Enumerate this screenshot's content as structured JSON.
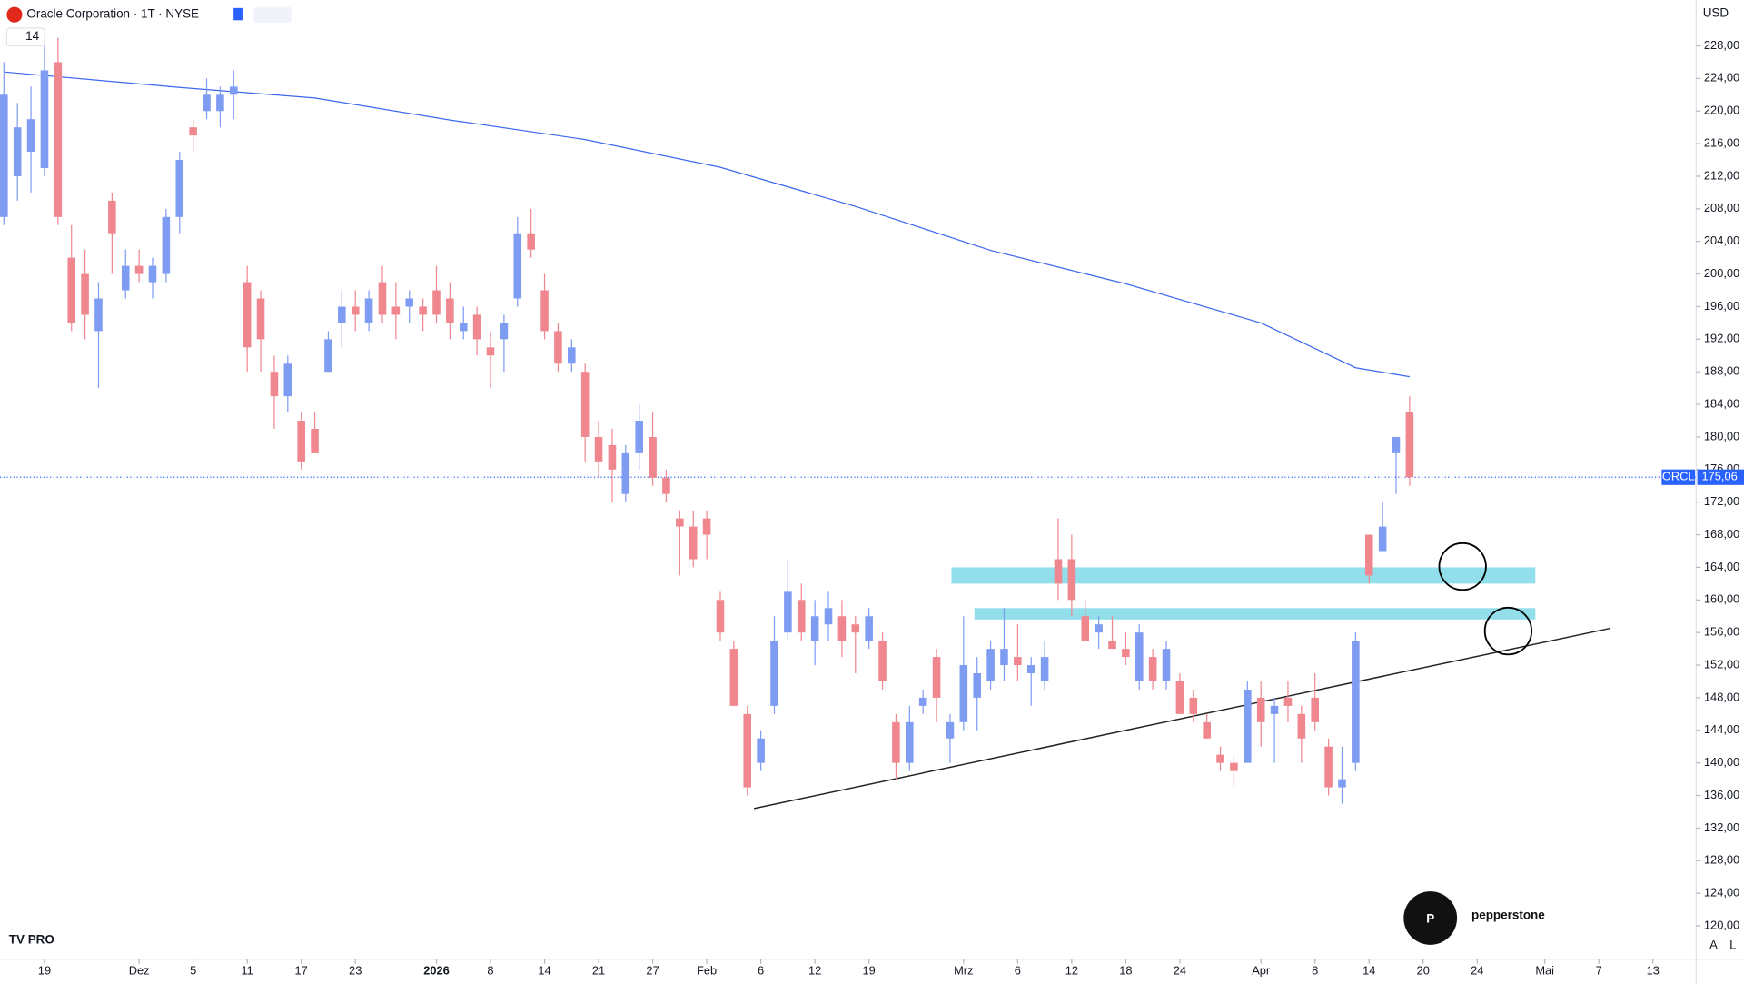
{
  "chart_data": {
    "type": "candlestick",
    "title": "Oracle Corporation · 1T · NYSE",
    "interval_input": "14",
    "currency": "USD",
    "up_color": "#7f9cf3",
    "down_color": "#f0878f",
    "x": [
      -3,
      -2,
      -1,
      0,
      1,
      2,
      3,
      4,
      5,
      6,
      7,
      8,
      9,
      10,
      11,
      12,
      13,
      14,
      15,
      16,
      17,
      18,
      19,
      20,
      21,
      22,
      23,
      24,
      25,
      26,
      27,
      28,
      29,
      30,
      31,
      32,
      33,
      34,
      35,
      36,
      37,
      38,
      39,
      40,
      41,
      42,
      43,
      44,
      45,
      46,
      47,
      48,
      49,
      50,
      51,
      52,
      53,
      54,
      55,
      56,
      57,
      58,
      59,
      60,
      61,
      62,
      63,
      64,
      65,
      66,
      67,
      68,
      69,
      70,
      71,
      72,
      73,
      74,
      75,
      76,
      77,
      78,
      79,
      80,
      81,
      82,
      83,
      84,
      85,
      86,
      87,
      88,
      89,
      90,
      91,
      92,
      93,
      94,
      95,
      96,
      97,
      98,
      99,
      100,
      101
    ],
    "open": [
      207,
      212,
      215,
      213,
      226,
      202,
      200,
      193,
      209,
      198,
      201,
      199,
      200,
      207,
      218,
      220,
      220,
      222,
      199,
      197,
      188,
      185,
      182,
      181,
      188,
      194,
      196,
      194,
      199,
      196,
      196,
      196,
      198,
      197,
      193,
      195,
      191,
      192,
      197,
      205,
      198,
      193,
      189,
      188,
      180,
      179,
      173,
      178,
      180,
      175,
      170,
      169,
      170,
      160,
      154,
      146,
      140,
      147,
      156,
      160,
      155,
      157,
      158,
      157,
      155,
      155,
      145,
      140,
      147,
      153,
      143,
      145,
      148,
      150,
      152,
      153,
      151,
      150,
      165,
      165,
      158,
      156,
      155,
      154,
      150,
      153,
      150,
      150,
      148,
      145,
      141,
      140,
      140,
      148,
      146,
      148,
      146,
      148,
      142,
      137,
      140,
      168,
      166,
      178,
      183
    ],
    "high": [
      226,
      221,
      223,
      228,
      229,
      206,
      203,
      199,
      210,
      203,
      203,
      202,
      208,
      215,
      219,
      224,
      223,
      225,
      201,
      198,
      190,
      190,
      183,
      183,
      193,
      198,
      198,
      198,
      201,
      199,
      198,
      197,
      201,
      199,
      196,
      196,
      193,
      195,
      207,
      208,
      200,
      194,
      192,
      189,
      182,
      181,
      179,
      184,
      183,
      176,
      171,
      171,
      171,
      161,
      155,
      147,
      144,
      158,
      165,
      162,
      160,
      161,
      160,
      158,
      159,
      156,
      146,
      147,
      149,
      154,
      146,
      158,
      153,
      155,
      159,
      157,
      153,
      155,
      170,
      168,
      160,
      158,
      158,
      156,
      157,
      154,
      155,
      151,
      149,
      146,
      142,
      141,
      150,
      150,
      148,
      150,
      147,
      151,
      143,
      142,
      156,
      168,
      172,
      180,
      185
    ],
    "low": [
      206,
      209,
      210,
      212,
      206,
      193,
      192,
      186,
      200,
      197,
      199,
      197,
      199,
      205,
      215,
      219,
      218,
      219,
      188,
      188,
      181,
      183,
      176,
      178,
      188,
      191,
      193,
      193,
      194,
      192,
      194,
      193,
      194,
      192,
      192,
      190,
      186,
      188,
      196,
      202,
      192,
      188,
      188,
      177,
      175,
      172,
      172,
      176,
      174,
      172,
      163,
      164,
      165,
      155,
      147,
      136,
      139,
      146,
      155,
      155,
      152,
      155,
      153,
      151,
      154,
      149,
      138,
      139,
      146,
      145,
      140,
      144,
      144,
      149,
      150,
      150,
      147,
      149,
      160,
      158,
      155,
      154,
      154,
      152,
      149,
      149,
      149,
      146,
      145,
      143,
      139,
      137,
      140,
      142,
      140,
      145,
      140,
      144,
      136,
      135,
      139,
      162,
      166,
      173,
      174
    ],
    "close": [
      222,
      218,
      219,
      225,
      207,
      194,
      195,
      197,
      205,
      201,
      200,
      201,
      207,
      214,
      217,
      222,
      222,
      223,
      191,
      192,
      185,
      189,
      177,
      178,
      192,
      196,
      195,
      197,
      195,
      195,
      197,
      195,
      195,
      194,
      194,
      192,
      190,
      194,
      205,
      203,
      193,
      189,
      191,
      180,
      177,
      176,
      178,
      182,
      175,
      173,
      169,
      165,
      168,
      156,
      147,
      137,
      143,
      155,
      161,
      156,
      158,
      159,
      155,
      156,
      158,
      150,
      140,
      145,
      148,
      148,
      145,
      152,
      151,
      154,
      154,
      152,
      152,
      153,
      162,
      160,
      155,
      157,
      154,
      153,
      156,
      150,
      154,
      146,
      146,
      143,
      140,
      139,
      149,
      145,
      147,
      147,
      143,
      145,
      137,
      138,
      155,
      163,
      169,
      180,
      175.06
    ],
    "xlim": [
      -3.29,
      122.2
    ],
    "ylim": [
      115.9,
      233.6
    ],
    "yticks": [
      {
        "value": 120,
        "label": "120,00"
      },
      {
        "value": 124,
        "label": "124,00"
      },
      {
        "value": 128,
        "label": "128,00"
      },
      {
        "value": 132,
        "label": "132,00"
      },
      {
        "value": 136,
        "label": "136,00"
      },
      {
        "value": 140,
        "label": "140,00"
      },
      {
        "value": 144,
        "label": "144,00"
      },
      {
        "value": 148,
        "label": "148,00"
      },
      {
        "value": 152,
        "label": "152,00"
      },
      {
        "value": 156,
        "label": "156,00"
      },
      {
        "value": 160,
        "label": "160,00"
      },
      {
        "value": 164,
        "label": "164,00"
      },
      {
        "value": 168,
        "label": "168,00"
      },
      {
        "value": 172,
        "label": "172,00"
      },
      {
        "value": 176,
        "label": "176,00"
      },
      {
        "value": 180,
        "label": "180,00"
      },
      {
        "value": 184,
        "label": "184,00"
      },
      {
        "value": 188,
        "label": "188,00"
      },
      {
        "value": 192,
        "label": "192,00"
      },
      {
        "value": 196,
        "label": "196,00"
      },
      {
        "value": 200,
        "label": "200,00"
      },
      {
        "value": 204,
        "label": "204,00"
      },
      {
        "value": 208,
        "label": "208,00"
      },
      {
        "value": 212,
        "label": "212,00"
      },
      {
        "value": 216,
        "label": "216,00"
      },
      {
        "value": 220,
        "label": "220,00"
      },
      {
        "value": 224,
        "label": "224,00"
      },
      {
        "value": 228,
        "label": "228,00"
      }
    ],
    "xticks": [
      {
        "value": 0,
        "label": "19"
      },
      {
        "value": 7,
        "label": "Dez"
      },
      {
        "value": 11,
        "label": "5"
      },
      {
        "value": 15,
        "label": "11"
      },
      {
        "value": 19,
        "label": "17"
      },
      {
        "value": 23,
        "label": "23"
      },
      {
        "value": 29,
        "label": "2026"
      },
      {
        "value": 33,
        "label": "8"
      },
      {
        "value": 37,
        "label": "14"
      },
      {
        "value": 41,
        "label": "21"
      },
      {
        "value": 45,
        "label": "27"
      },
      {
        "value": 49,
        "label": "Feb"
      },
      {
        "value": 53,
        "label": "6"
      },
      {
        "value": 57,
        "label": "12"
      },
      {
        "value": 61,
        "label": "19"
      },
      {
        "value": 68,
        "label": "Mrz"
      },
      {
        "value": 72,
        "label": "6"
      },
      {
        "value": 76,
        "label": "12"
      },
      {
        "value": 80,
        "label": "18"
      },
      {
        "value": 84,
        "label": "24"
      },
      {
        "value": 90,
        "label": "Apr"
      },
      {
        "value": 94,
        "label": "8"
      },
      {
        "value": 98,
        "label": "14"
      },
      {
        "value": 102,
        "label": "20"
      },
      {
        "value": 106,
        "label": "24"
      },
      {
        "value": 111,
        "label": "Mai"
      },
      {
        "value": 115,
        "label": "7"
      },
      {
        "value": 119,
        "label": "13"
      }
    ],
    "ma": {
      "color": "#3d67f0",
      "x": [
        -3,
        10,
        20,
        30,
        40,
        50,
        60,
        70,
        80,
        90,
        97,
        101
      ],
      "values": [
        224.8,
        222.9,
        221.6,
        218.9,
        216.5,
        213.1,
        208.3,
        202.9,
        198.8,
        194,
        188.5,
        187.4
      ]
    },
    "zones": [
      {
        "x": [
          67.1,
          110.3
        ],
        "low": 162,
        "high": 164
      },
      {
        "x": [
          68.8,
          110.3
        ],
        "low": 157.6,
        "high": 159
      }
    ],
    "zone_color": "#7fd8e6",
    "trendline": {
      "x": [
        52.5,
        115.8
      ],
      "values": [
        134.4,
        156.5
      ]
    },
    "last_price": {
      "name": "ORCL",
      "value": 175.06,
      "label": "175,06"
    },
    "watermark": "pepperstone",
    "footer_buttons": [
      "A",
      "L"
    ]
  }
}
